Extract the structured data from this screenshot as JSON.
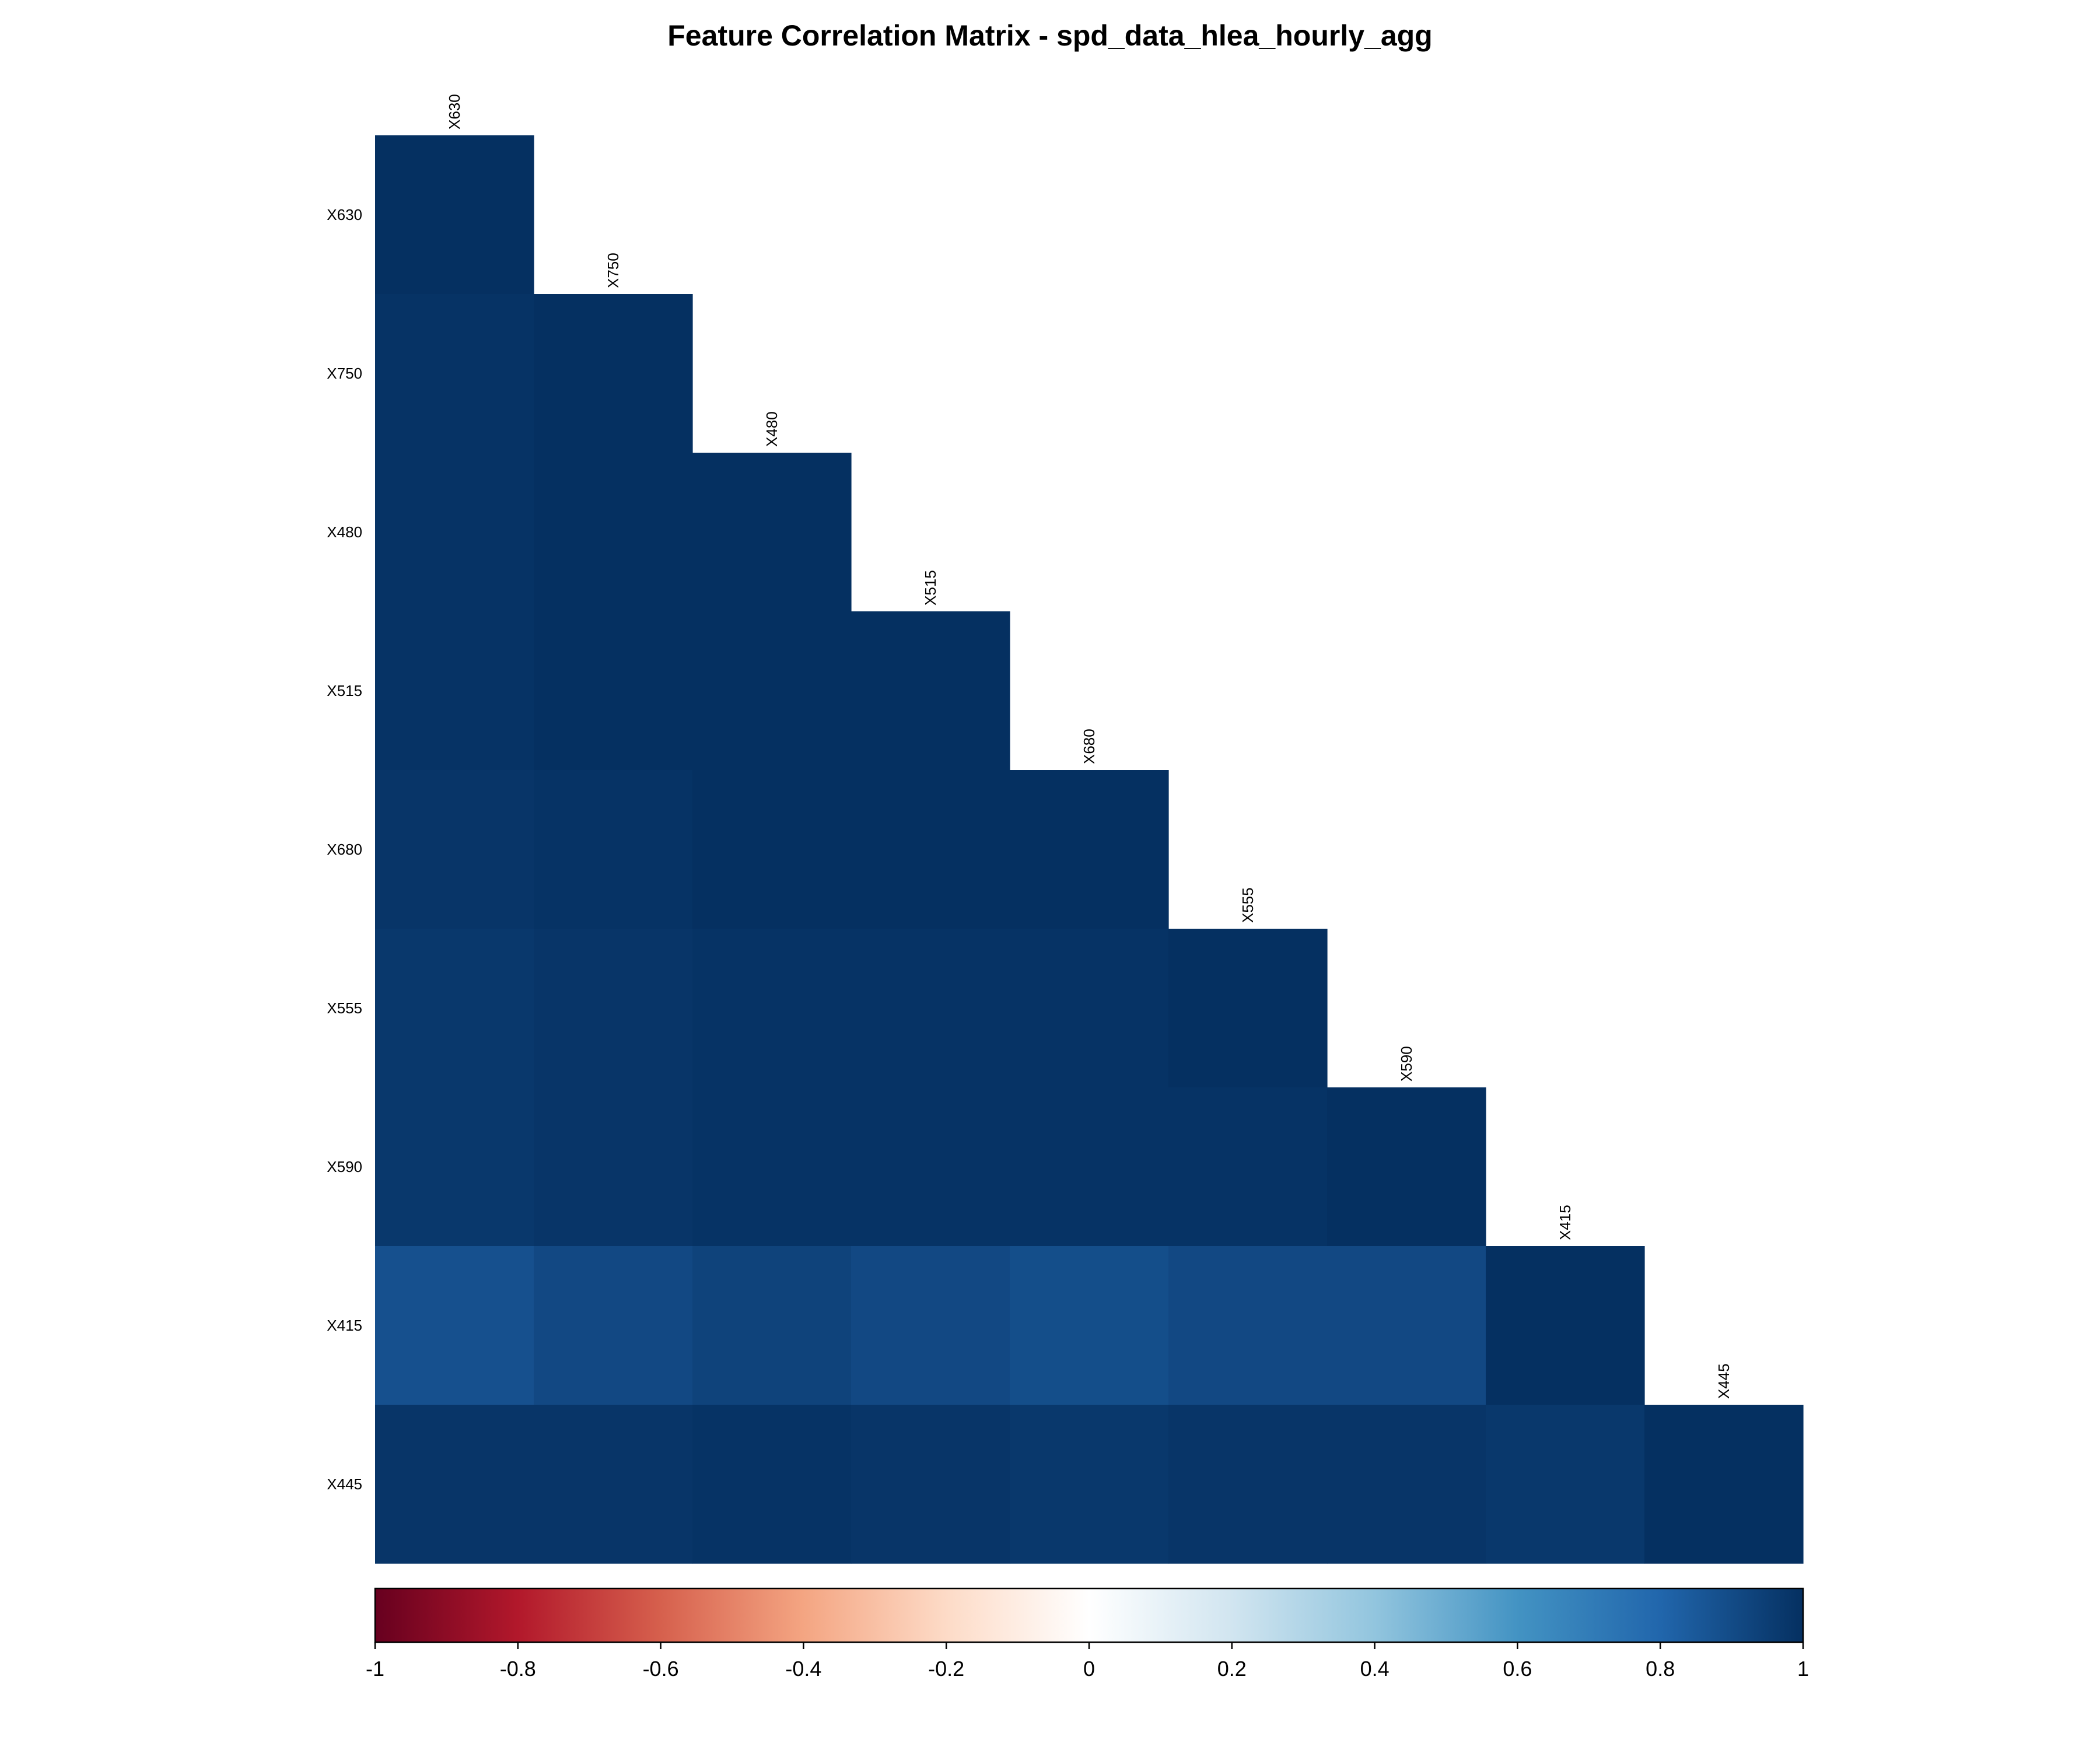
{
  "chart_data": {
    "type": "heatmap",
    "title": "Feature Correlation Matrix - spd_data_hlea_hourly_agg",
    "shape": "lower-triangle",
    "variables": [
      "X630",
      "X750",
      "X480",
      "X515",
      "X680",
      "X555",
      "X590",
      "X415",
      "X445"
    ],
    "matrix": [
      [
        1.0
      ],
      [
        0.99,
        1.0
      ],
      [
        0.99,
        1.0,
        1.0
      ],
      [
        0.99,
        1.0,
        1.0,
        1.0
      ],
      [
        0.98,
        0.99,
        1.0,
        1.0,
        1.0
      ],
      [
        0.97,
        0.98,
        0.99,
        0.99,
        0.99,
        1.0
      ],
      [
        0.97,
        0.98,
        0.99,
        0.99,
        0.99,
        0.99,
        1.0
      ],
      [
        0.88,
        0.91,
        0.93,
        0.91,
        0.89,
        0.91,
        0.91,
        1.0
      ],
      [
        0.98,
        0.98,
        0.99,
        0.98,
        0.97,
        0.98,
        0.98,
        0.97,
        1.0
      ]
    ],
    "colorbar": {
      "min": -1,
      "max": 1,
      "ticks": [
        "-1",
        "-0.8",
        "-0.6",
        "-0.4",
        "-0.2",
        "0",
        "0.2",
        "0.4",
        "0.6",
        "0.8",
        "1"
      ],
      "colors": [
        "#67001f",
        "#b2182b",
        "#d6604d",
        "#f4a582",
        "#fddbc7",
        "#ffffff",
        "#d1e5f0",
        "#92c5de",
        "#4393c3",
        "#2166ac",
        "#053061"
      ],
      "placement": "bottom"
    }
  }
}
